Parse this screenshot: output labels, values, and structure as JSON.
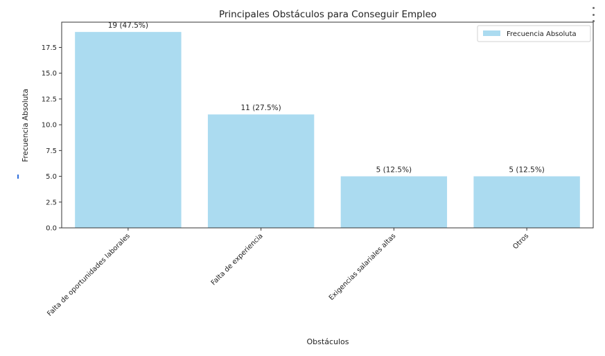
{
  "chart_data": {
    "type": "bar",
    "title": "Principales Obstáculos para Conseguir Empleo",
    "xlabel": "Obstáculos",
    "ylabel": "Frecuencia Absoluta",
    "categories": [
      "Falta de oportunidades laborales",
      "Falta de experiencia",
      "Exigencias salariales altas",
      "Otros"
    ],
    "series": [
      {
        "name": "Frecuencia Absoluta",
        "values": [
          19,
          11,
          5,
          5
        ],
        "color": "#abdbf0"
      }
    ],
    "data_labels": [
      "19 (47.5%)",
      "11 (27.5%)",
      "5 (12.5%)",
      "5 (12.5%)"
    ],
    "yticks": [
      0.0,
      2.5,
      5.0,
      7.5,
      10.0,
      12.5,
      15.0,
      17.5
    ],
    "ytick_labels": [
      "0.0",
      "2.5",
      "5.0",
      "7.5",
      "10.0",
      "12.5",
      "15.0",
      "17.5"
    ],
    "ylim": [
      0,
      19.95
    ],
    "grid": false,
    "legend_position": "top-right"
  },
  "ui": {
    "menu_icon": "kebab-menu-icon"
  }
}
